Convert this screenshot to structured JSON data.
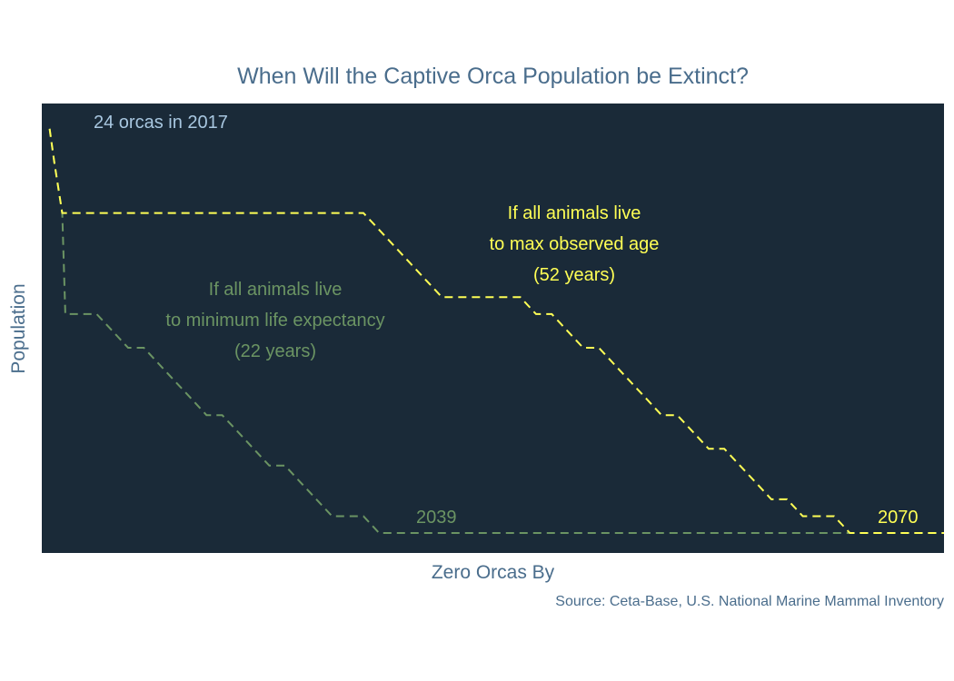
{
  "title": "When Will the Captive Orca Population be Extinct?",
  "xlabel": "Zero Orcas By",
  "ylabel": "Population",
  "source": "Source: Ceta-Base, U.S. National Marine Mammal Inventory",
  "colors": {
    "background": "#1a2a38",
    "max_age": "#ffff55",
    "min_life": "#6b9463",
    "start_label": "#a8c7e0",
    "axis_text": "#4a6d8c"
  },
  "chart_data": {
    "type": "line",
    "x_range": [
      2016.5,
      2074
    ],
    "y_range": [
      0,
      25.5
    ],
    "grid": false,
    "series": [
      {
        "key": "max_age",
        "style": "dashed",
        "x": [
          2017,
          2017.3,
          2017.8,
          2037,
          2038,
          2039,
          2040,
          2041,
          2042,
          2043,
          2047,
          2048,
          2049,
          2050,
          2051,
          2052,
          2053,
          2054,
          2055,
          2056,
          2057,
          2058,
          2059,
          2060,
          2061,
          2062,
          2063,
          2064,
          2065,
          2066,
          2067,
          2068,
          2069,
          2070,
          2074
        ],
        "y": [
          24,
          22,
          19,
          19,
          18,
          17,
          16,
          15,
          14,
          14,
          14,
          13,
          13,
          12,
          11,
          11,
          10,
          9,
          8,
          7,
          7,
          6,
          5,
          5,
          4,
          3,
          2,
          2,
          1,
          1,
          1,
          0,
          0,
          0,
          0
        ]
      },
      {
        "key": "min_life",
        "style": "dashed",
        "x": [
          2017,
          2017.3,
          2017.8,
          2018,
          2019,
          2020,
          2021,
          2022,
          2023,
          2024,
          2025,
          2026,
          2027,
          2028,
          2029,
          2030,
          2031,
          2032,
          2033,
          2034,
          2035,
          2036,
          2037,
          2038,
          2039,
          2074
        ],
        "y": [
          24,
          22,
          19,
          13,
          13,
          13,
          12,
          11,
          11,
          10,
          9,
          8,
          7,
          7,
          6,
          5,
          4,
          4,
          3,
          2,
          1,
          1,
          1,
          0,
          0,
          0
        ]
      }
    ],
    "annotations": {
      "start": "24 orcas in 2017",
      "max_age_lines": [
        "If all animals live",
        "to max observed age",
        "(52 years)"
      ],
      "min_life_lines": [
        "If all animals live",
        "to minimum life expectancy",
        "(22 years)"
      ],
      "max_age_end": "2070",
      "min_life_end": "2039"
    }
  }
}
